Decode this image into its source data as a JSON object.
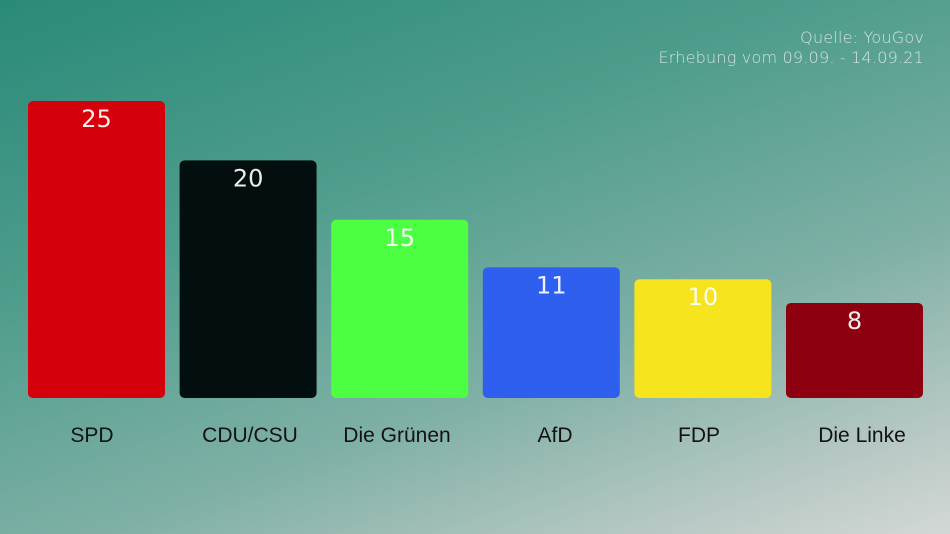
{
  "source": {
    "line1": "Quelle: YouGov",
    "line2": "Erhebung vom 09.09. - 14.09.21"
  },
  "chart_data": {
    "type": "bar",
    "categories": [
      "SPD",
      "CDU/CSU",
      "Die Grünen",
      "AfD",
      "FDP",
      "Die Linke"
    ],
    "values": [
      25,
      20,
      15,
      11,
      10,
      8
    ],
    "colors": [
      "#d4000b",
      "#030f0f",
      "#4dff42",
      "#2f5fef",
      "#f5e41e",
      "#8c0010"
    ],
    "ylim": [
      0,
      25
    ],
    "grid": false,
    "legend": "none",
    "title": "",
    "xlabel": "",
    "ylabel": ""
  }
}
